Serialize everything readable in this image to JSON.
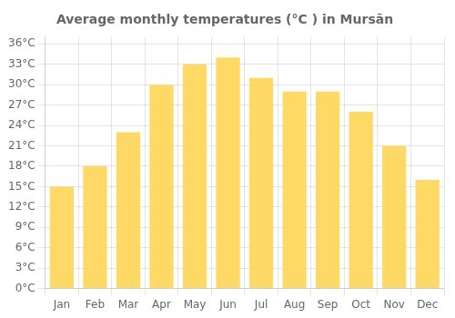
{
  "chart_data": {
    "type": "bar",
    "title": "Average monthly temperatures (°C ) in Mursān",
    "categories": [
      "Jan",
      "Feb",
      "Mar",
      "Apr",
      "May",
      "Jun",
      "Jul",
      "Aug",
      "Sep",
      "Oct",
      "Nov",
      "Dec"
    ],
    "values": [
      15,
      18,
      23,
      30,
      33,
      34,
      31,
      29,
      29,
      26,
      21,
      16
    ],
    "color": "#FFD966",
    "ylim": [
      0,
      37
    ],
    "yticks": [
      {
        "value": 0,
        "label": "0°C"
      },
      {
        "value": 3,
        "label": "3°C"
      },
      {
        "value": 6,
        "label": "6°C"
      },
      {
        "value": 9,
        "label": "9°C"
      },
      {
        "value": 12,
        "label": "12°C"
      },
      {
        "value": 15,
        "label": "15°C"
      },
      {
        "value": 18,
        "label": "18°C"
      },
      {
        "value": 21,
        "label": "21°C"
      },
      {
        "value": 24,
        "label": "24°C"
      },
      {
        "value": 27,
        "label": "27°C"
      },
      {
        "value": 30,
        "label": "30°C"
      },
      {
        "value": 33,
        "label": "33°C"
      },
      {
        "value": 36,
        "label": "36°C"
      }
    ],
    "grid": true
  }
}
